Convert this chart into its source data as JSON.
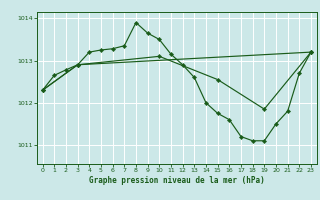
{
  "title": "Graphe pression niveau de la mer (hPa)",
  "background_color": "#cce8e8",
  "line_color": "#1a5c1a",
  "grid_color": "#ffffff",
  "xlim": [
    -0.5,
    23.5
  ],
  "ylim": [
    1010.55,
    1014.15
  ],
  "yticks": [
    1011,
    1012,
    1013,
    1014
  ],
  "xticks": [
    0,
    1,
    2,
    3,
    4,
    5,
    6,
    7,
    8,
    9,
    10,
    11,
    12,
    13,
    14,
    15,
    16,
    17,
    18,
    19,
    20,
    21,
    22,
    23
  ],
  "series1_x": [
    0,
    1,
    2,
    3,
    4,
    5,
    6,
    7,
    8,
    9,
    10,
    11,
    12,
    13,
    14,
    15,
    16,
    17,
    18,
    19,
    20,
    21,
    22,
    23
  ],
  "series1_y": [
    1012.3,
    1012.65,
    1012.78,
    1012.9,
    1013.2,
    1013.25,
    1013.28,
    1013.35,
    1013.9,
    1013.65,
    1013.5,
    1013.15,
    1012.9,
    1012.6,
    1012.0,
    1011.75,
    1011.6,
    1011.2,
    1011.1,
    1011.1,
    1011.5,
    1011.8,
    1012.7,
    1013.2
  ],
  "series2_x": [
    0,
    3,
    10,
    15,
    19,
    23
  ],
  "series2_y": [
    1012.3,
    1012.9,
    1013.1,
    1012.55,
    1011.85,
    1013.2
  ],
  "series3_x": [
    0,
    3,
    23
  ],
  "series3_y": [
    1012.3,
    1012.9,
    1013.2
  ]
}
